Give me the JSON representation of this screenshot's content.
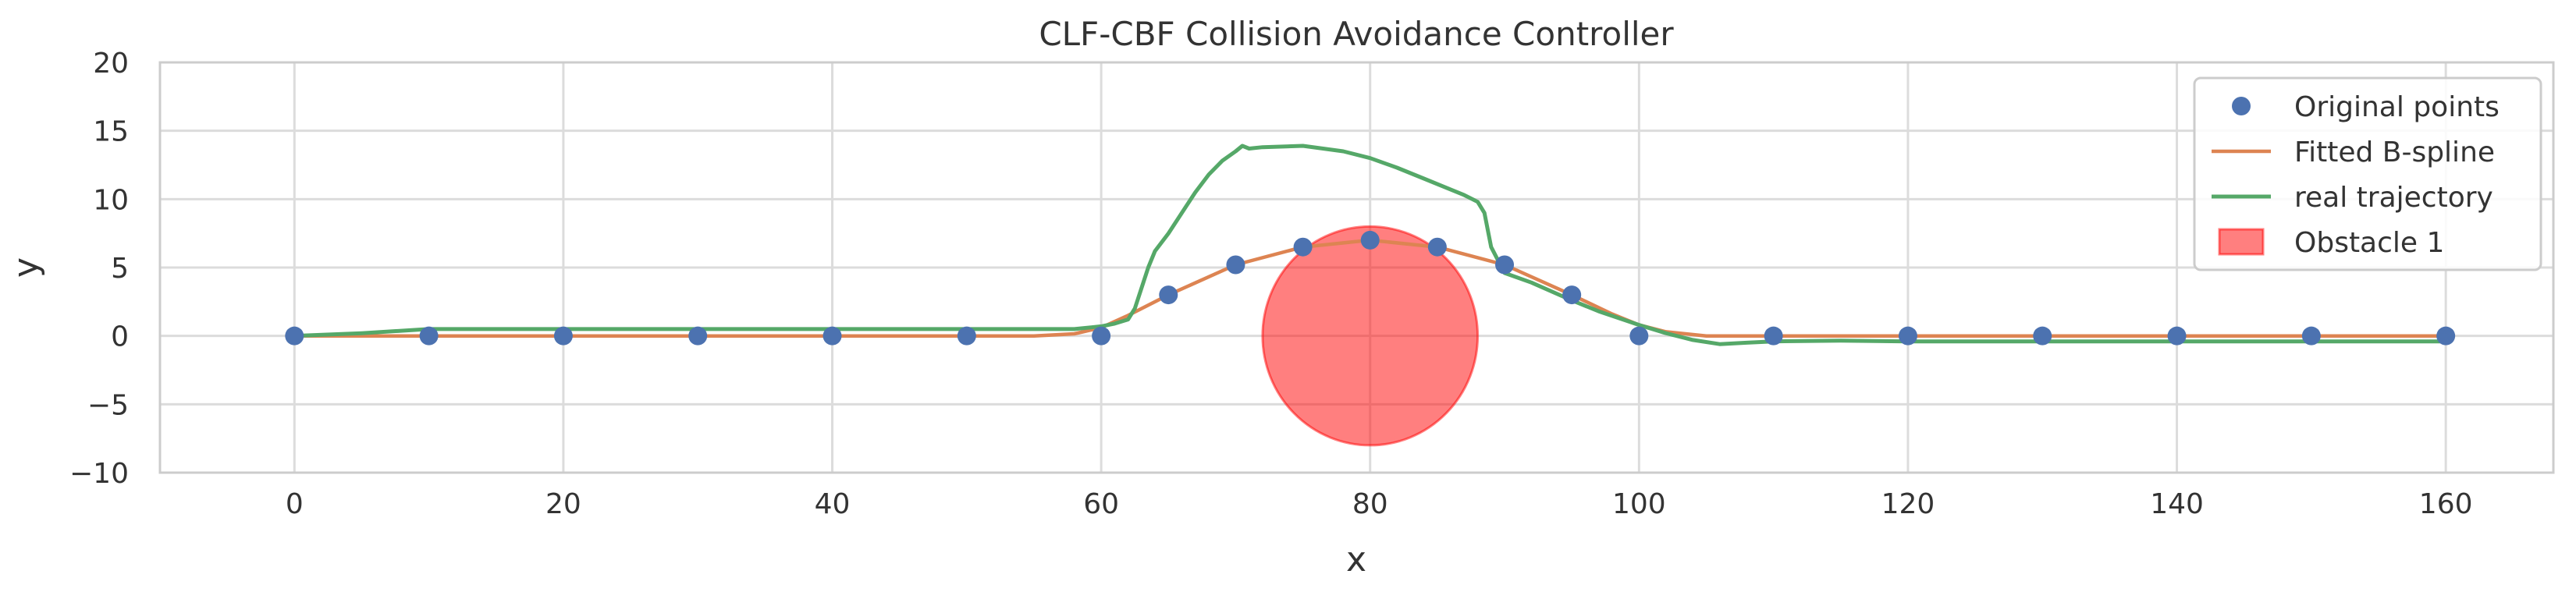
{
  "chart_data": {
    "type": "line",
    "title": "CLF-CBF Collision Avoidance Controller",
    "xlabel": "x",
    "ylabel": "y",
    "xlim": [
      -10,
      168
    ],
    "ylim": [
      -10,
      20
    ],
    "xticks": [
      0,
      20,
      40,
      60,
      80,
      100,
      120,
      140,
      160
    ],
    "xtick_labels": [
      "0",
      "20",
      "40",
      "60",
      "80",
      "100",
      "120",
      "140",
      "160"
    ],
    "yticks": [
      -10,
      -5,
      0,
      5,
      10,
      15,
      20
    ],
    "ytick_labels": [
      "−10",
      "−5",
      "0",
      "5",
      "10",
      "15",
      "20"
    ],
    "grid": true,
    "legend_position": "top-right",
    "colors": {
      "points": "#4c72b0",
      "spline": "#dd8452",
      "trajectory": "#55a868",
      "obstacle": "#ff0000",
      "grid": "#dcdcdc",
      "spine": "#cccccc",
      "text": "#333333"
    },
    "original_points": {
      "name": "Original points",
      "x": [
        0,
        10,
        20,
        30,
        40,
        50,
        60,
        65,
        70,
        75,
        80,
        85,
        90,
        95,
        100,
        110,
        120,
        130,
        140,
        150,
        160
      ],
      "y": [
        0,
        0,
        0,
        0,
        0,
        0,
        0,
        3,
        5.2,
        6.5,
        7,
        6.5,
        5.2,
        3,
        0,
        0,
        0,
        0,
        0,
        0,
        0
      ]
    },
    "spline": {
      "name": "Fitted B-spline",
      "x": [
        0,
        10,
        20,
        30,
        40,
        50,
        55,
        58,
        60,
        62,
        65,
        70,
        75,
        80,
        85,
        90,
        95,
        98,
        100,
        102,
        105,
        110,
        120,
        130,
        140,
        150,
        160
      ],
      "y": [
        0,
        0,
        0,
        0,
        0,
        0,
        0,
        0.15,
        0.6,
        1.5,
        3.0,
        5.2,
        6.5,
        7.0,
        6.5,
        5.2,
        3.0,
        1.6,
        0.8,
        0.3,
        0,
        0,
        0,
        0,
        0,
        0,
        0
      ]
    },
    "trajectory": {
      "name": "real trajectory",
      "x": [
        0,
        5,
        10,
        20,
        30,
        40,
        50,
        58,
        60,
        61,
        62,
        62.5,
        63,
        63.5,
        64,
        65,
        66,
        67,
        68,
        69,
        70,
        70.5,
        71,
        72,
        75,
        78,
        80,
        82,
        84,
        86,
        87,
        88,
        88.5,
        89,
        90,
        92,
        95,
        97,
        100,
        102,
        104,
        106,
        108,
        110,
        115,
        120,
        130,
        140,
        150,
        160
      ],
      "y": [
        0,
        0.2,
        0.5,
        0.5,
        0.5,
        0.5,
        0.5,
        0.5,
        0.7,
        0.9,
        1.2,
        2.0,
        3.5,
        5.0,
        6.2,
        7.5,
        9.0,
        10.5,
        11.8,
        12.8,
        13.5,
        13.9,
        13.7,
        13.8,
        13.9,
        13.5,
        13.0,
        12.3,
        11.5,
        10.7,
        10.3,
        9.8,
        9.0,
        6.5,
        4.6,
        3.9,
        2.6,
        1.8,
        0.8,
        0.2,
        -0.3,
        -0.6,
        -0.5,
        -0.4,
        -0.35,
        -0.4,
        -0.4,
        -0.4,
        -0.4,
        -0.4
      ]
    },
    "obstacle": {
      "name": "Obstacle 1",
      "center": [
        80,
        0
      ],
      "radius": 8
    }
  }
}
